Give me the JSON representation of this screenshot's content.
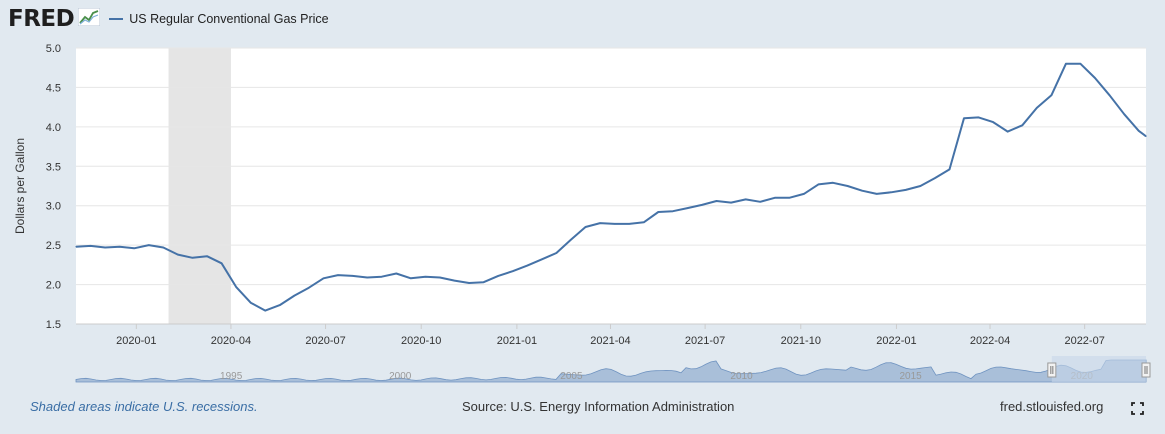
{
  "header": {
    "logo_text": "FRED",
    "logo_icon": "line-chart-icon",
    "legend_label": "US Regular Conventional Gas Price"
  },
  "colors": {
    "series": "#4572a7",
    "recession": "#e5e5e5",
    "background": "#e1e9f0",
    "plot_background": "#ffffff",
    "navigator_fill": "#a9bfd9",
    "navigator_selection": "#c8d7ea",
    "footer_link": "#3a6ea5"
  },
  "chart_data": {
    "type": "line",
    "ylabel": "Dollars per Gallon",
    "ylim": [
      1.5,
      5.0
    ],
    "yticks": [
      "1.5",
      "2.0",
      "2.5",
      "3.0",
      "3.5",
      "4.0",
      "4.5",
      "5.0"
    ],
    "xlim": [
      "2019-11-04",
      "2022-08-29"
    ],
    "xticks": [
      {
        "date": "2020-01-01",
        "label": "2020-01"
      },
      {
        "date": "2020-04-01",
        "label": "2020-04"
      },
      {
        "date": "2020-07-01",
        "label": "2020-07"
      },
      {
        "date": "2020-10-01",
        "label": "2020-10"
      },
      {
        "date": "2021-01-01",
        "label": "2021-01"
      },
      {
        "date": "2021-04-01",
        "label": "2021-04"
      },
      {
        "date": "2021-07-01",
        "label": "2021-07"
      },
      {
        "date": "2021-10-01",
        "label": "2021-10"
      },
      {
        "date": "2022-01-01",
        "label": "2022-01"
      },
      {
        "date": "2022-04-01",
        "label": "2022-04"
      },
      {
        "date": "2022-07-01",
        "label": "2022-07"
      }
    ],
    "grid": true,
    "legend": "top-left",
    "recessions": [
      {
        "start": "2020-02-01",
        "end": "2020-04-01"
      }
    ],
    "series": [
      {
        "name": "US Regular Conventional Gas Price",
        "x": [
          "2019-11-04",
          "2019-11-18",
          "2019-12-02",
          "2019-12-16",
          "2019-12-30",
          "2020-01-13",
          "2020-01-27",
          "2020-02-10",
          "2020-02-24",
          "2020-03-09",
          "2020-03-23",
          "2020-04-06",
          "2020-04-20",
          "2020-05-04",
          "2020-05-18",
          "2020-06-01",
          "2020-06-15",
          "2020-06-29",
          "2020-07-13",
          "2020-07-27",
          "2020-08-10",
          "2020-08-24",
          "2020-09-07",
          "2020-09-21",
          "2020-10-05",
          "2020-10-19",
          "2020-11-02",
          "2020-11-16",
          "2020-11-30",
          "2020-12-14",
          "2020-12-28",
          "2021-01-11",
          "2021-01-25",
          "2021-02-08",
          "2021-02-22",
          "2021-03-08",
          "2021-03-22",
          "2021-04-05",
          "2021-04-19",
          "2021-05-03",
          "2021-05-17",
          "2021-05-31",
          "2021-06-14",
          "2021-06-28",
          "2021-07-12",
          "2021-07-26",
          "2021-08-09",
          "2021-08-23",
          "2021-09-06",
          "2021-09-20",
          "2021-10-04",
          "2021-10-18",
          "2021-11-01",
          "2021-11-15",
          "2021-11-29",
          "2021-12-13",
          "2021-12-27",
          "2022-01-10",
          "2022-01-24",
          "2022-02-07",
          "2022-02-21",
          "2022-03-07",
          "2022-03-21",
          "2022-04-04",
          "2022-04-18",
          "2022-05-02",
          "2022-05-16",
          "2022-05-30",
          "2022-06-13",
          "2022-06-27",
          "2022-07-11",
          "2022-07-25",
          "2022-08-08",
          "2022-08-22",
          "2022-08-29"
        ],
        "values": [
          2.48,
          2.49,
          2.47,
          2.48,
          2.46,
          2.5,
          2.47,
          2.38,
          2.34,
          2.36,
          2.27,
          1.97,
          1.77,
          1.67,
          1.74,
          1.86,
          1.96,
          2.08,
          2.12,
          2.11,
          2.09,
          2.1,
          2.14,
          2.08,
          2.1,
          2.09,
          2.05,
          2.02,
          2.03,
          2.11,
          2.17,
          2.24,
          2.32,
          2.4,
          2.57,
          2.73,
          2.78,
          2.77,
          2.77,
          2.79,
          2.92,
          2.93,
          2.97,
          3.01,
          3.06,
          3.04,
          3.08,
          3.05,
          3.1,
          3.1,
          3.15,
          3.27,
          3.29,
          3.25,
          3.19,
          3.15,
          3.17,
          3.2,
          3.25,
          3.35,
          3.46,
          4.11,
          4.12,
          4.06,
          3.94,
          4.02,
          4.24,
          4.4,
          4.8,
          4.8,
          4.62,
          4.4,
          4.16,
          3.95,
          3.88
        ]
      }
    ]
  },
  "navigator": {
    "labels": [
      "1995",
      "2000",
      "2005",
      "2010",
      "2015",
      "2020"
    ],
    "label_positions": [
      0.145,
      0.303,
      0.463,
      0.622,
      0.78,
      0.94
    ],
    "selection": [
      0.912,
      1.0
    ]
  },
  "footer": {
    "recession_note": "Shaded areas indicate U.S. recessions.",
    "source": "Source: U.S. Energy Information Administration",
    "site": "fred.stlouisfed.org",
    "fullscreen_icon": "fullscreen-icon"
  }
}
